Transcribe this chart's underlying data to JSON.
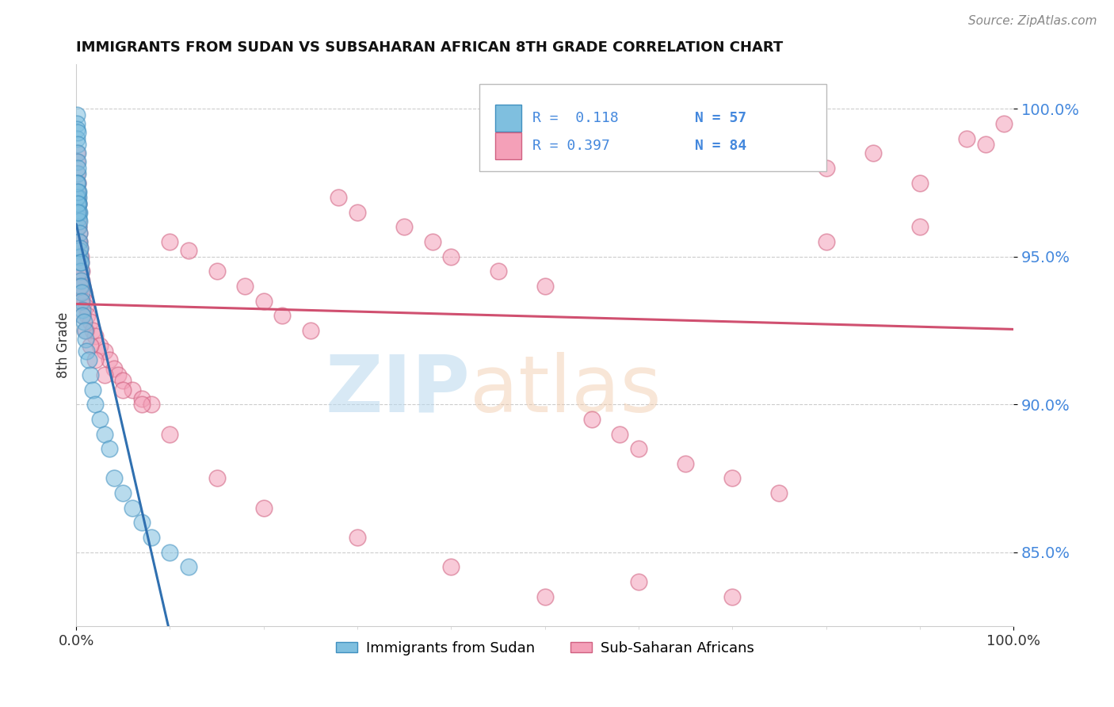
{
  "title": "IMMIGRANTS FROM SUDAN VS SUBSAHARAN AFRICAN 8TH GRADE CORRELATION CHART",
  "source": "Source: ZipAtlas.com",
  "ylabel": "8th Grade",
  "xlim": [
    0,
    100
  ],
  "ylim": [
    82.5,
    101.5
  ],
  "yticks": [
    85.0,
    90.0,
    95.0,
    100.0
  ],
  "legend_r1": "R =  0.118",
  "legend_n1": "N = 57",
  "legend_r2": "R = 0.397",
  "legend_n2": "N = 84",
  "color_blue": "#7fbfdf",
  "color_pink": "#f4a0b8",
  "color_blue_edge": "#4090c0",
  "color_pink_edge": "#d06080",
  "color_trend_blue": "#3070b0",
  "color_trend_pink": "#d05070",
  "ytick_color": "#4488dd",
  "xtick_color": "#333333",
  "figsize": [
    14.06,
    8.92
  ],
  "dpi": 100,
  "sudan_x": [
    0.05,
    0.08,
    0.1,
    0.1,
    0.12,
    0.12,
    0.15,
    0.15,
    0.15,
    0.18,
    0.18,
    0.2,
    0.2,
    0.2,
    0.22,
    0.25,
    0.25,
    0.28,
    0.3,
    0.3,
    0.3,
    0.35,
    0.35,
    0.4,
    0.4,
    0.42,
    0.45,
    0.48,
    0.5,
    0.5,
    0.55,
    0.6,
    0.65,
    0.7,
    0.8,
    0.9,
    1.0,
    1.1,
    1.3,
    1.5,
    1.8,
    2.0,
    2.5,
    3.0,
    3.5,
    4.0,
    5.0,
    6.0,
    7.0,
    8.0,
    10.0,
    12.0,
    0.08,
    0.1,
    0.12,
    0.15,
    0.18
  ],
  "sudan_y": [
    99.8,
    99.5,
    99.3,
    99.0,
    99.2,
    98.8,
    98.5,
    98.2,
    97.8,
    98.0,
    97.5,
    97.2,
    97.0,
    96.8,
    96.5,
    96.8,
    96.3,
    96.0,
    96.5,
    96.2,
    95.8,
    95.5,
    95.2,
    95.0,
    94.8,
    95.3,
    94.5,
    94.2,
    94.0,
    94.8,
    93.8,
    93.5,
    93.2,
    93.0,
    92.8,
    92.5,
    92.2,
    91.8,
    91.5,
    91.0,
    90.5,
    90.0,
    89.5,
    89.0,
    88.5,
    87.5,
    87.0,
    86.5,
    86.0,
    85.5,
    85.0,
    84.5,
    97.0,
    97.5,
    97.2,
    96.8,
    96.5
  ],
  "subsaharan_x": [
    0.05,
    0.08,
    0.1,
    0.12,
    0.15,
    0.18,
    0.2,
    0.22,
    0.25,
    0.28,
    0.3,
    0.35,
    0.4,
    0.45,
    0.5,
    0.55,
    0.6,
    0.7,
    0.8,
    0.9,
    1.0,
    1.2,
    1.5,
    1.8,
    2.0,
    2.5,
    3.0,
    3.5,
    4.0,
    4.5,
    5.0,
    6.0,
    7.0,
    8.0,
    10.0,
    12.0,
    15.0,
    18.0,
    20.0,
    22.0,
    25.0,
    28.0,
    30.0,
    35.0,
    38.0,
    40.0,
    45.0,
    50.0,
    55.0,
    58.0,
    60.0,
    65.0,
    70.0,
    75.0,
    80.0,
    85.0,
    90.0,
    95.0,
    97.0,
    99.0,
    0.1,
    0.15,
    0.2,
    0.25,
    0.3,
    0.4,
    0.5,
    0.7,
    1.0,
    1.5,
    2.0,
    3.0,
    5.0,
    7.0,
    10.0,
    15.0,
    20.0,
    30.0,
    40.0,
    50.0,
    60.0,
    70.0,
    80.0,
    90.0
  ],
  "subsaharan_y": [
    98.5,
    98.2,
    97.8,
    97.5,
    97.2,
    97.0,
    96.8,
    96.5,
    96.2,
    96.0,
    95.8,
    95.5,
    95.3,
    95.0,
    94.8,
    94.5,
    94.2,
    94.0,
    93.8,
    93.5,
    93.3,
    93.0,
    92.8,
    92.5,
    92.3,
    92.0,
    91.8,
    91.5,
    91.2,
    91.0,
    90.8,
    90.5,
    90.2,
    90.0,
    95.5,
    95.2,
    94.5,
    94.0,
    93.5,
    93.0,
    92.5,
    97.0,
    96.5,
    96.0,
    95.5,
    95.0,
    94.5,
    94.0,
    89.5,
    89.0,
    88.5,
    88.0,
    87.5,
    87.0,
    98.0,
    98.5,
    97.5,
    99.0,
    98.8,
    99.5,
    96.5,
    96.0,
    95.5,
    95.0,
    94.5,
    94.0,
    93.5,
    93.0,
    92.5,
    92.0,
    91.5,
    91.0,
    90.5,
    90.0,
    89.0,
    87.5,
    86.5,
    85.5,
    84.5,
    83.5,
    84.0,
    83.5,
    95.5,
    96.0
  ]
}
